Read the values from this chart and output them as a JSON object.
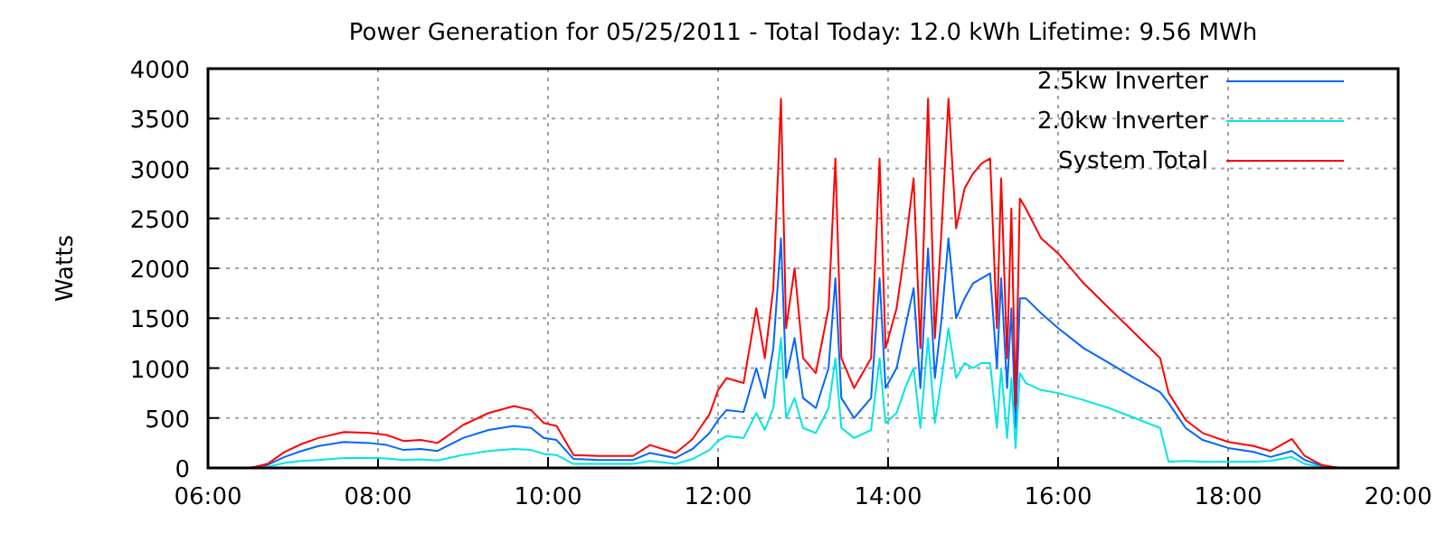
{
  "chart_data": {
    "type": "line",
    "title": "Power Generation for 05/25/2011 - Total Today: 12.0 kWh   Lifetime: 9.56 MWh",
    "ylabel": "Watts",
    "x": [
      6.5,
      6.7,
      6.9,
      7.1,
      7.3,
      7.6,
      7.9,
      8.1,
      8.3,
      8.5,
      8.7,
      9.0,
      9.3,
      9.6,
      9.8,
      9.95,
      10.1,
      10.3,
      10.6,
      11.0,
      11.2,
      11.5,
      11.7,
      11.9,
      12.0,
      12.1,
      12.3,
      12.45,
      12.55,
      12.65,
      12.74,
      12.8,
      12.9,
      13.0,
      13.15,
      13.3,
      13.38,
      13.45,
      13.6,
      13.8,
      13.9,
      13.97,
      14.1,
      14.2,
      14.3,
      14.38,
      14.47,
      14.55,
      14.63,
      14.71,
      14.8,
      14.9,
      15.0,
      15.1,
      15.2,
      15.28,
      15.33,
      15.4,
      15.45,
      15.5,
      15.55,
      15.62,
      15.8,
      16.0,
      16.3,
      16.6,
      16.9,
      17.2,
      17.3,
      17.5,
      17.7,
      18.0,
      18.3,
      18.5,
      18.75,
      18.9,
      19.1,
      19.3
    ],
    "series": [
      {
        "name": "2.5kw Inverter",
        "color": "#0066ff",
        "values": [
          0,
          30,
          110,
          170,
          220,
          260,
          250,
          230,
          180,
          190,
          170,
          300,
          380,
          420,
          400,
          300,
          280,
          90,
          80,
          80,
          150,
          100,
          190,
          350,
          480,
          580,
          560,
          1000,
          700,
          1200,
          2300,
          900,
          1300,
          700,
          600,
          1000,
          1900,
          700,
          500,
          700,
          1900,
          800,
          1000,
          1400,
          1800,
          800,
          2200,
          900,
          1500,
          2300,
          1500,
          1700,
          1850,
          1900,
          1950,
          1000,
          1900,
          800,
          1600,
          400,
          1700,
          1700,
          1550,
          1400,
          1200,
          1050,
          900,
          760,
          650,
          400,
          280,
          200,
          160,
          110,
          170,
          80,
          20,
          0
        ]
      },
      {
        "name": "2.0kw Inverter",
        "color": "#00e5e5",
        "values": [
          0,
          10,
          50,
          70,
          80,
          100,
          100,
          95,
          80,
          85,
          75,
          130,
          170,
          190,
          180,
          140,
          130,
          40,
          40,
          40,
          70,
          40,
          90,
          180,
          270,
          320,
          300,
          550,
          380,
          600,
          1300,
          500,
          700,
          400,
          350,
          600,
          1100,
          400,
          300,
          380,
          1100,
          450,
          550,
          800,
          1000,
          400,
          1300,
          450,
          900,
          1400,
          900,
          1050,
          1000,
          1050,
          1050,
          400,
          1000,
          300,
          900,
          200,
          950,
          850,
          780,
          750,
          680,
          600,
          500,
          400,
          60,
          70,
          60,
          60,
          60,
          70,
          110,
          40,
          10,
          0
        ]
      },
      {
        "name": "System Total",
        "color": "#ff0000",
        "values": [
          0,
          40,
          160,
          240,
          300,
          360,
          350,
          330,
          270,
          280,
          250,
          430,
          550,
          620,
          580,
          450,
          420,
          130,
          120,
          120,
          230,
          150,
          290,
          540,
          780,
          900,
          850,
          1600,
          1100,
          1800,
          3700,
          1400,
          2000,
          1100,
          950,
          1600,
          3100,
          1100,
          800,
          1100,
          3100,
          1200,
          1600,
          2200,
          2900,
          1200,
          3700,
          1300,
          2400,
          3700,
          2400,
          2800,
          2950,
          3050,
          3100,
          1400,
          2900,
          1100,
          2600,
          600,
          2700,
          2600,
          2300,
          2150,
          1850,
          1600,
          1350,
          1100,
          750,
          480,
          350,
          260,
          220,
          170,
          290,
          120,
          30,
          0
        ]
      }
    ],
    "xlim": [
      6,
      20
    ],
    "xticks": [
      {
        "value": 6,
        "label": "06:00"
      },
      {
        "value": 8,
        "label": "08:00"
      },
      {
        "value": 10,
        "label": "10:00"
      },
      {
        "value": 12,
        "label": "12:00"
      },
      {
        "value": 14,
        "label": "14:00"
      },
      {
        "value": 16,
        "label": "16:00"
      },
      {
        "value": 18,
        "label": "18:00"
      },
      {
        "value": 20,
        "label": "20:00"
      }
    ],
    "ylim": [
      0,
      4000
    ],
    "yticks": [
      0,
      500,
      1000,
      1500,
      2000,
      2500,
      3000,
      3500,
      4000
    ],
    "grid": true,
    "legend": "top right",
    "marker": "none",
    "line_style": "solid"
  }
}
